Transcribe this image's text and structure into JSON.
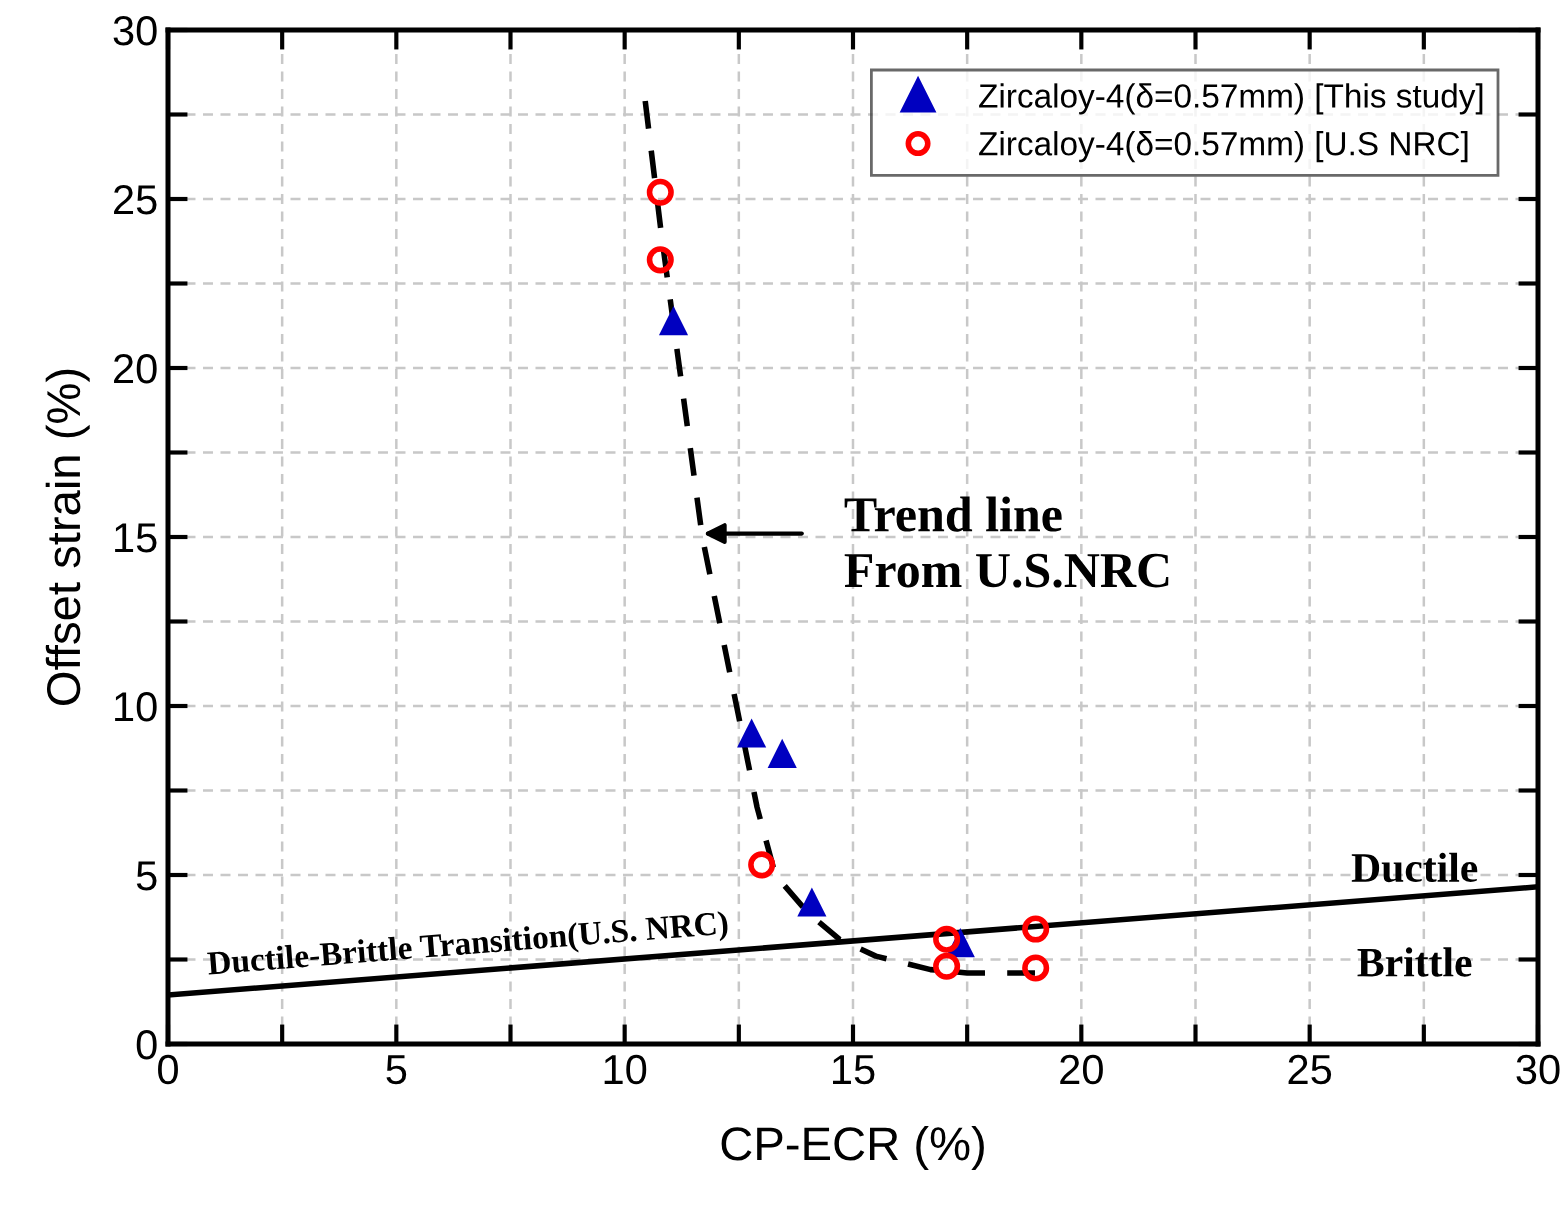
{
  "chart_data": {
    "type": "scatter",
    "xlabel": "CP-ECR (%)",
    "ylabel": "Offset strain (%)",
    "xlim": [
      0,
      30
    ],
    "ylim": [
      0,
      30
    ],
    "xticks": [
      0,
      {
        "value": 2.5,
        "label": null
      },
      5,
      {
        "value": 7.5,
        "label": null
      },
      10,
      {
        "value": 12.5,
        "label": null
      },
      15,
      {
        "value": 17.5,
        "label": null
      },
      20,
      {
        "value": 22.5,
        "label": null
      },
      25,
      {
        "value": 27.5,
        "label": null
      },
      30
    ],
    "yticks": [
      0,
      {
        "value": 2.5,
        "label": null
      },
      5,
      {
        "value": 7.5,
        "label": null
      },
      10,
      {
        "value": 12.5,
        "label": null
      },
      15,
      {
        "value": 17.5,
        "label": null
      },
      20,
      {
        "value": 22.5,
        "label": null
      },
      25,
      {
        "value": 27.5,
        "label": null
      },
      30
    ],
    "grid": true,
    "legend": "top right",
    "series": [
      {
        "name": "Zircaloy-4(δ=0.57mm) [This study]",
        "marker": "triangle",
        "color": "#0000c0",
        "x": [
          11.07,
          12.78,
          13.45,
          14.1,
          17.35
        ],
        "values": [
          21.4,
          9.2,
          8.6,
          4.2,
          3.0
        ]
      },
      {
        "name": "Zircaloy-4(δ=0.57mm) [U.S NRC]",
        "marker": "circle",
        "color": "#ff0000",
        "x": [
          10.78,
          10.78,
          13.0,
          17.05,
          17.05,
          19.0,
          19.0
        ],
        "values": [
          25.2,
          23.2,
          5.3,
          3.1,
          2.3,
          3.4,
          2.25
        ]
      },
      {
        "type": "line",
        "line_style": "dashed",
        "color": "#000000",
        "x": [
          10.45,
          10.8,
          11.1,
          11.7,
          12.3,
          12.9,
          13.3,
          14.0,
          14.7,
          15.5,
          16.7,
          17.5,
          19.0
        ],
        "values": [
          27.9,
          24.0,
          21.0,
          15.0,
          11.0,
          7.0,
          5.0,
          3.9,
          3.1,
          2.6,
          2.2,
          2.1,
          2.1
        ]
      },
      {
        "name": "Ductile-Brittle Transition(U.S. NRC)",
        "type": "line",
        "line_style": "solid",
        "color": "#000000",
        "x": [
          0,
          30
        ],
        "values": [
          1.45,
          4.65
        ]
      }
    ],
    "annotations": [
      "Trend line\nFrom U.S.NRC",
      "Ductile",
      "Brittle"
    ]
  }
}
